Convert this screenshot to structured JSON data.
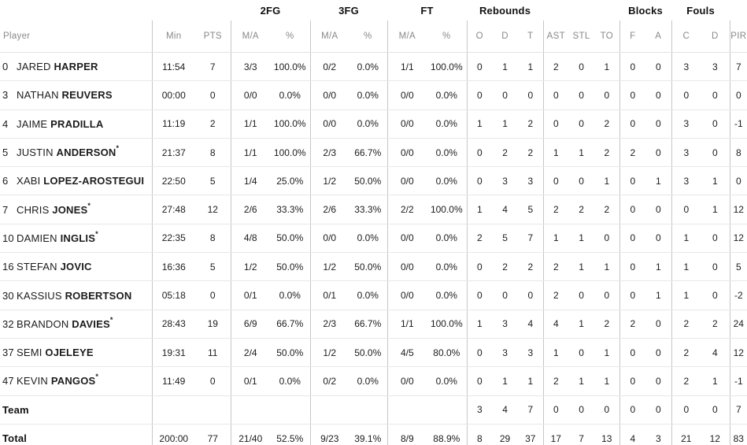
{
  "table": {
    "groups": {
      "fg2": "2FG",
      "fg3": "3FG",
      "ft": "FT",
      "rebounds": "Rebounds",
      "blocks": "Blocks",
      "fouls": "Fouls"
    },
    "columns": {
      "player": "Player",
      "min": "Min",
      "pts": "PTS",
      "ma": "M/A",
      "pct": "%",
      "o": "O",
      "d": "D",
      "t": "T",
      "ast": "AST",
      "stl": "STL",
      "to": "TO",
      "f": "F",
      "a": "A",
      "c": "C",
      "d2": "D",
      "pir": "PIR"
    },
    "starter_mark": "*",
    "colors": {
      "header_text": "#898989",
      "data_text": "#1c1c1c",
      "group_header_text": "#111111",
      "vertical_line": "#c6c6c6",
      "horizontal_line": "#e7e7e7"
    },
    "rows": [
      {
        "num": "0",
        "first": "JARED",
        "last": "HARPER",
        "starter": false,
        "min": "11:54",
        "pts": "7",
        "fg2_ma": "3/3",
        "fg2_pct": "100.0%",
        "fg3_ma": "0/2",
        "fg3_pct": "0.0%",
        "ft_ma": "1/1",
        "ft_pct": "100.0%",
        "reb_o": "0",
        "reb_d": "1",
        "reb_t": "1",
        "ast": "2",
        "stl": "0",
        "to": "1",
        "blk_f": "0",
        "blk_a": "0",
        "foul_c": "3",
        "foul_d": "3",
        "pir": "7"
      },
      {
        "num": "3",
        "first": "NATHAN",
        "last": "REUVERS",
        "starter": false,
        "min": "00:00",
        "pts": "0",
        "fg2_ma": "0/0",
        "fg2_pct": "0.0%",
        "fg3_ma": "0/0",
        "fg3_pct": "0.0%",
        "ft_ma": "0/0",
        "ft_pct": "0.0%",
        "reb_o": "0",
        "reb_d": "0",
        "reb_t": "0",
        "ast": "0",
        "stl": "0",
        "to": "0",
        "blk_f": "0",
        "blk_a": "0",
        "foul_c": "0",
        "foul_d": "0",
        "pir": "0"
      },
      {
        "num": "4",
        "first": "JAIME",
        "last": "PRADILLA",
        "starter": false,
        "min": "11:19",
        "pts": "2",
        "fg2_ma": "1/1",
        "fg2_pct": "100.0%",
        "fg3_ma": "0/0",
        "fg3_pct": "0.0%",
        "ft_ma": "0/0",
        "ft_pct": "0.0%",
        "reb_o": "1",
        "reb_d": "1",
        "reb_t": "2",
        "ast": "0",
        "stl": "0",
        "to": "2",
        "blk_f": "0",
        "blk_a": "0",
        "foul_c": "3",
        "foul_d": "0",
        "pir": "-1"
      },
      {
        "num": "5",
        "first": "JUSTIN",
        "last": "ANDERSON",
        "starter": true,
        "min": "21:37",
        "pts": "8",
        "fg2_ma": "1/1",
        "fg2_pct": "100.0%",
        "fg3_ma": "2/3",
        "fg3_pct": "66.7%",
        "ft_ma": "0/0",
        "ft_pct": "0.0%",
        "reb_o": "0",
        "reb_d": "2",
        "reb_t": "2",
        "ast": "1",
        "stl": "1",
        "to": "2",
        "blk_f": "2",
        "blk_a": "0",
        "foul_c": "3",
        "foul_d": "0",
        "pir": "8"
      },
      {
        "num": "6",
        "first": "XABI",
        "last": "LOPEZ-AROSTEGUI",
        "starter": false,
        "min": "22:50",
        "pts": "5",
        "fg2_ma": "1/4",
        "fg2_pct": "25.0%",
        "fg3_ma": "1/2",
        "fg3_pct": "50.0%",
        "ft_ma": "0/0",
        "ft_pct": "0.0%",
        "reb_o": "0",
        "reb_d": "3",
        "reb_t": "3",
        "ast": "0",
        "stl": "0",
        "to": "1",
        "blk_f": "0",
        "blk_a": "1",
        "foul_c": "3",
        "foul_d": "1",
        "pir": "0"
      },
      {
        "num": "7",
        "first": "CHRIS",
        "last": "JONES",
        "starter": true,
        "min": "27:48",
        "pts": "12",
        "fg2_ma": "2/6",
        "fg2_pct": "33.3%",
        "fg3_ma": "2/6",
        "fg3_pct": "33.3%",
        "ft_ma": "2/2",
        "ft_pct": "100.0%",
        "reb_o": "1",
        "reb_d": "4",
        "reb_t": "5",
        "ast": "2",
        "stl": "2",
        "to": "2",
        "blk_f": "0",
        "blk_a": "0",
        "foul_c": "0",
        "foul_d": "1",
        "pir": "12"
      },
      {
        "num": "10",
        "first": "DAMIEN",
        "last": "INGLIS",
        "starter": true,
        "min": "22:35",
        "pts": "8",
        "fg2_ma": "4/8",
        "fg2_pct": "50.0%",
        "fg3_ma": "0/0",
        "fg3_pct": "0.0%",
        "ft_ma": "0/0",
        "ft_pct": "0.0%",
        "reb_o": "2",
        "reb_d": "5",
        "reb_t": "7",
        "ast": "1",
        "stl": "1",
        "to": "0",
        "blk_f": "0",
        "blk_a": "0",
        "foul_c": "1",
        "foul_d": "0",
        "pir": "12"
      },
      {
        "num": "16",
        "first": "STEFAN",
        "last": "JOVIC",
        "starter": false,
        "min": "16:36",
        "pts": "5",
        "fg2_ma": "1/2",
        "fg2_pct": "50.0%",
        "fg3_ma": "1/2",
        "fg3_pct": "50.0%",
        "ft_ma": "0/0",
        "ft_pct": "0.0%",
        "reb_o": "0",
        "reb_d": "2",
        "reb_t": "2",
        "ast": "2",
        "stl": "1",
        "to": "1",
        "blk_f": "0",
        "blk_a": "1",
        "foul_c": "1",
        "foul_d": "0",
        "pir": "5"
      },
      {
        "num": "30",
        "first": "KASSIUS",
        "last": "ROBERTSON",
        "starter": false,
        "min": "05:18",
        "pts": "0",
        "fg2_ma": "0/1",
        "fg2_pct": "0.0%",
        "fg3_ma": "0/1",
        "fg3_pct": "0.0%",
        "ft_ma": "0/0",
        "ft_pct": "0.0%",
        "reb_o": "0",
        "reb_d": "0",
        "reb_t": "0",
        "ast": "2",
        "stl": "0",
        "to": "0",
        "blk_f": "0",
        "blk_a": "1",
        "foul_c": "1",
        "foul_d": "0",
        "pir": "-2"
      },
      {
        "num": "32",
        "first": "BRANDON",
        "last": "DAVIES",
        "starter": true,
        "min": "28:43",
        "pts": "19",
        "fg2_ma": "6/9",
        "fg2_pct": "66.7%",
        "fg3_ma": "2/3",
        "fg3_pct": "66.7%",
        "ft_ma": "1/1",
        "ft_pct": "100.0%",
        "reb_o": "1",
        "reb_d": "3",
        "reb_t": "4",
        "ast": "4",
        "stl": "1",
        "to": "2",
        "blk_f": "2",
        "blk_a": "0",
        "foul_c": "2",
        "foul_d": "2",
        "pir": "24"
      },
      {
        "num": "37",
        "first": "SEMI",
        "last": "OJELEYE",
        "starter": false,
        "min": "19:31",
        "pts": "11",
        "fg2_ma": "2/4",
        "fg2_pct": "50.0%",
        "fg3_ma": "1/2",
        "fg3_pct": "50.0%",
        "ft_ma": "4/5",
        "ft_pct": "80.0%",
        "reb_o": "0",
        "reb_d": "3",
        "reb_t": "3",
        "ast": "1",
        "stl": "0",
        "to": "1",
        "blk_f": "0",
        "blk_a": "0",
        "foul_c": "2",
        "foul_d": "4",
        "pir": "12"
      },
      {
        "num": "47",
        "first": "KEVIN",
        "last": "PANGOS",
        "starter": true,
        "min": "11:49",
        "pts": "0",
        "fg2_ma": "0/1",
        "fg2_pct": "0.0%",
        "fg3_ma": "0/2",
        "fg3_pct": "0.0%",
        "ft_ma": "0/0",
        "ft_pct": "0.0%",
        "reb_o": "0",
        "reb_d": "1",
        "reb_t": "1",
        "ast": "2",
        "stl": "1",
        "to": "1",
        "blk_f": "0",
        "blk_a": "0",
        "foul_c": "2",
        "foul_d": "1",
        "pir": "-1"
      },
      {
        "label": "Team",
        "min": "",
        "pts": "",
        "fg2_ma": "",
        "fg2_pct": "",
        "fg3_ma": "",
        "fg3_pct": "",
        "ft_ma": "",
        "ft_pct": "",
        "reb_o": "3",
        "reb_d": "4",
        "reb_t": "7",
        "ast": "0",
        "stl": "0",
        "to": "0",
        "blk_f": "0",
        "blk_a": "0",
        "foul_c": "0",
        "foul_d": "0",
        "pir": "7"
      },
      {
        "label": "Total",
        "min": "200:00",
        "pts": "77",
        "fg2_ma": "21/40",
        "fg2_pct": "52.5%",
        "fg3_ma": "9/23",
        "fg3_pct": "39.1%",
        "ft_ma": "8/9",
        "ft_pct": "88.9%",
        "reb_o": "8",
        "reb_d": "29",
        "reb_t": "37",
        "ast": "17",
        "stl": "7",
        "to": "13",
        "blk_f": "4",
        "blk_a": "3",
        "foul_c": "21",
        "foul_d": "12",
        "pir": "83"
      }
    ]
  }
}
